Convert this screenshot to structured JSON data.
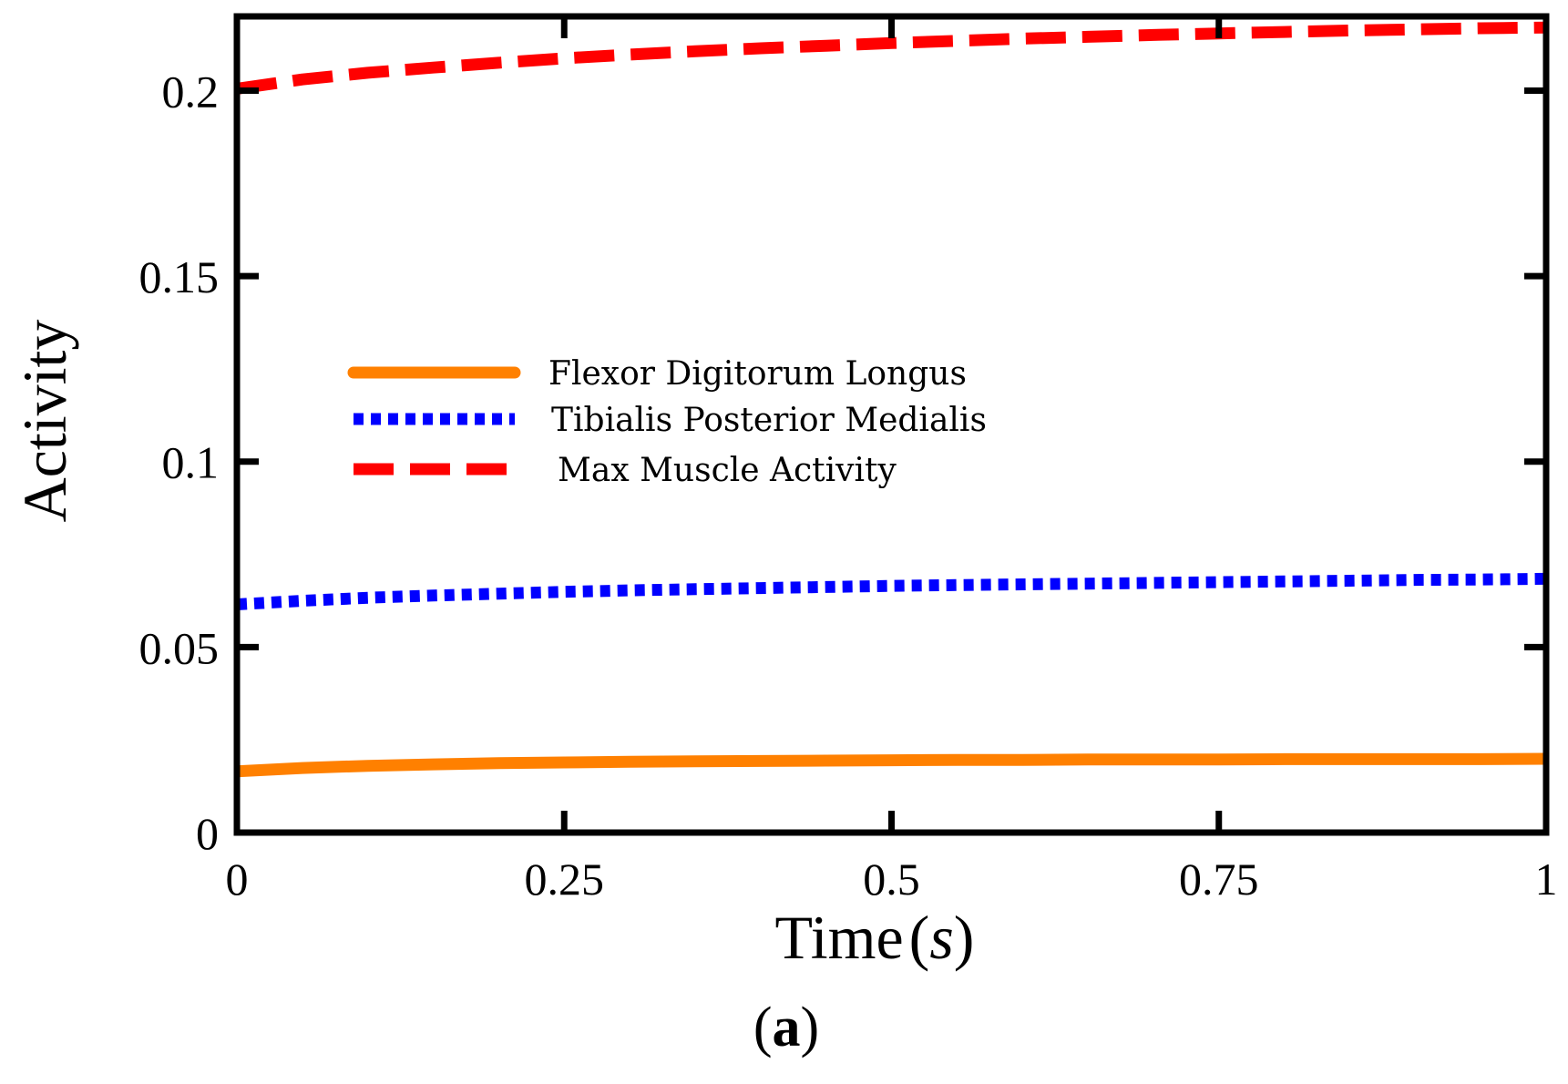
{
  "chart_data": {
    "type": "line",
    "title": "",
    "xlabel": "Time",
    "xlabel_unit": "s",
    "ylabel": "Activity",
    "panel_label": "a",
    "xlim": [
      0,
      1
    ],
    "ylim": [
      0,
      0.22
    ],
    "xticks": [
      0,
      0.25,
      0.5,
      0.75,
      1
    ],
    "xtick_labels": [
      "0",
      "0.25",
      "0.5",
      "0.75",
      "1"
    ],
    "yticks": [
      0,
      0.05,
      0.1,
      0.15,
      0.2
    ],
    "ytick_labels": [
      "0",
      "0.05",
      "0.1",
      "0.15",
      "0.2"
    ],
    "grid": false,
    "legend_position": "center-left",
    "x": [
      0,
      0.05,
      0.1,
      0.15,
      0.2,
      0.25,
      0.3,
      0.35,
      0.4,
      0.45,
      0.5,
      0.55,
      0.6,
      0.65,
      0.7,
      0.75,
      0.8,
      0.85,
      0.9,
      0.95,
      1.0
    ],
    "series": [
      {
        "name": "Flexor Digitorum Longus",
        "color": "#FF8000",
        "style": "solid",
        "values": [
          0.0165,
          0.0174,
          0.018,
          0.0184,
          0.0187,
          0.0189,
          0.0191,
          0.0192,
          0.0193,
          0.0194,
          0.0195,
          0.0196,
          0.0196,
          0.0197,
          0.0197,
          0.0197,
          0.0198,
          0.0198,
          0.0198,
          0.0198,
          0.0199
        ]
      },
      {
        "name": "Tibialis Posterior Medialis",
        "color": "#0000FF",
        "style": "dotted",
        "values": [
          0.0615,
          0.0625,
          0.0633,
          0.0639,
          0.0644,
          0.0649,
          0.0653,
          0.0656,
          0.0659,
          0.0662,
          0.0665,
          0.0667,
          0.0669,
          0.0671,
          0.0673,
          0.0675,
          0.0677,
          0.0679,
          0.0681,
          0.0682,
          0.0684
        ]
      },
      {
        "name": "Max Muscle Activity",
        "color": "#FF0000",
        "style": "dashed",
        "values": [
          0.2005,
          0.203,
          0.2048,
          0.2062,
          0.2075,
          0.2087,
          0.2097,
          0.2106,
          0.2114,
          0.2121,
          0.2128,
          0.2134,
          0.214,
          0.2145,
          0.215,
          0.2154,
          0.2158,
          0.2162,
          0.2165,
          0.2168,
          0.217
        ]
      }
    ]
  }
}
